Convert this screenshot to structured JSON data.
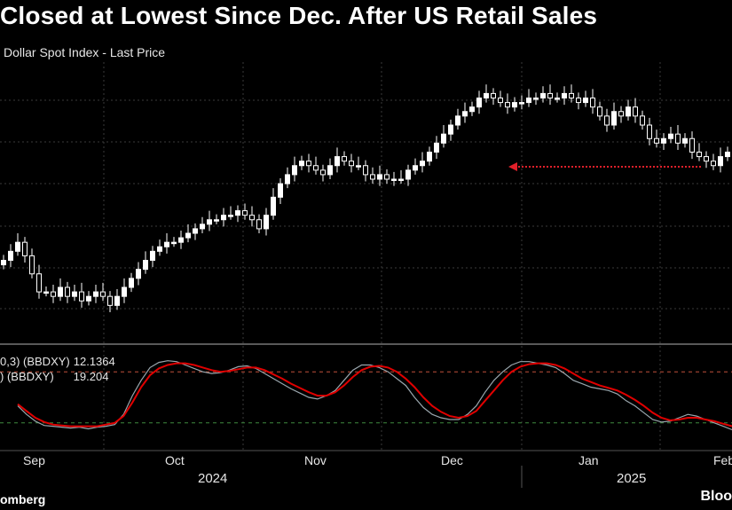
{
  "title": "Closed at Lowest Since Dec. After US Retail Sales",
  "subtitle": "Dollar Spot Index - Last Price",
  "legend": {
    "k_label": "0,3) (BBDXY)",
    "k_value": "12.1364",
    "d_label": ") (BBDXY)",
    "d_value": "19.204"
  },
  "months": [
    "Sep",
    "Oct",
    "Nov",
    "Dec",
    "Jan",
    "Feb"
  ],
  "years": [
    "2024",
    "2025"
  ],
  "source": "omberg",
  "brand": "Bloo",
  "colors": {
    "background": "#000000",
    "candle": "#ffffff",
    "signal": "#e00000",
    "stoch": "#9aa6ad",
    "arrow": "#e0202a"
  },
  "chart_data": [
    {
      "type": "candlestick",
      "series_name": "Dollar Spot Index - Last Price",
      "close": [
        58,
        60,
        62,
        59,
        55,
        51,
        51,
        50,
        52,
        50,
        51,
        49,
        50,
        51,
        50,
        48,
        50,
        52,
        54,
        56,
        58,
        60,
        61,
        62,
        62,
        63,
        64,
        65,
        66,
        67,
        67,
        68,
        68,
        69,
        68,
        67,
        65,
        68,
        72,
        75,
        77,
        79,
        80,
        79,
        78,
        77,
        79,
        81,
        80,
        79,
        79,
        77,
        76,
        77,
        76,
        76,
        76,
        78,
        79,
        80,
        82,
        84,
        86,
        88,
        90,
        91,
        92,
        94,
        95,
        94,
        93,
        92,
        93,
        93,
        94,
        94,
        95,
        94,
        94,
        95,
        94,
        93,
        94,
        92,
        90,
        88,
        91,
        90,
        92,
        90,
        88,
        85,
        84,
        85,
        86,
        84,
        85,
        82,
        81,
        80,
        79,
        81,
        82
      ],
      "annotation": "arrow pointing to early December level",
      "y_axis_labels": "not visible"
    },
    {
      "type": "line",
      "panel": "stochastic oscillator",
      "series": [
        {
          "name": "BBDXY %K",
          "color": "#9aa6ad",
          "values": [
            40,
            30,
            22,
            17,
            16,
            15,
            14,
            15,
            13,
            15,
            16,
            18,
            30,
            52,
            70,
            85,
            91,
            93,
            92,
            88,
            84,
            80,
            78,
            79,
            82,
            86,
            87,
            84,
            78,
            72,
            66,
            60,
            55,
            50,
            48,
            52,
            58,
            70,
            82,
            88,
            88,
            85,
            80,
            72,
            64,
            50,
            38,
            30,
            26,
            24,
            24,
            30,
            40,
            56,
            70,
            80,
            88,
            92,
            92,
            90,
            88,
            85,
            78,
            70,
            66,
            62,
            60,
            58,
            54,
            46,
            40,
            32,
            24,
            21,
            22,
            26,
            30,
            28,
            24,
            20,
            16,
            12
          ]
        },
        {
          "name": "BBDXY %D",
          "color": "#e00000",
          "values": [
            42,
            34,
            26,
            21,
            18,
            17,
            16,
            16,
            16,
            16,
            18,
            20,
            28,
            44,
            62,
            76,
            84,
            88,
            90,
            90,
            88,
            85,
            82,
            80,
            81,
            83,
            85,
            85,
            82,
            77,
            72,
            66,
            61,
            56,
            52,
            52,
            56,
            64,
            74,
            82,
            86,
            87,
            85,
            80,
            72,
            62,
            50,
            40,
            33,
            28,
            26,
            28,
            34,
            46,
            58,
            70,
            80,
            86,
            89,
            90,
            90,
            88,
            84,
            78,
            72,
            68,
            64,
            61,
            58,
            53,
            47,
            40,
            32,
            26,
            23,
            24,
            26,
            26,
            24,
            22,
            19,
            16
          ]
        }
      ],
      "reference_lines": [
        80,
        20
      ]
    }
  ]
}
